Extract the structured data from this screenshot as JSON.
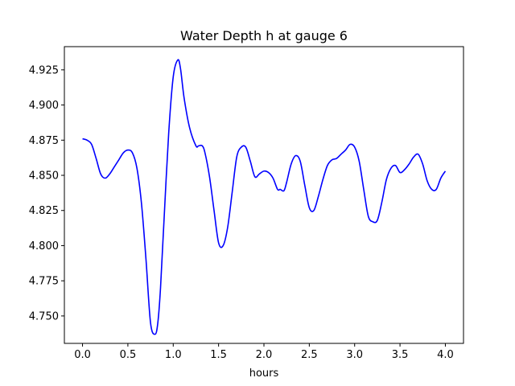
{
  "chart_data": {
    "type": "line",
    "title": "Water Depth h at gauge 6",
    "xlabel": "hours",
    "ylabel": "",
    "xlim": [
      -0.2,
      4.2
    ],
    "ylim": [
      4.7305,
      4.9415
    ],
    "xticks": [
      0.0,
      0.5,
      1.0,
      1.5,
      2.0,
      2.5,
      3.0,
      3.5,
      4.0
    ],
    "xtick_labels": [
      "0.0",
      "0.5",
      "1.0",
      "1.5",
      "2.0",
      "2.5",
      "3.0",
      "3.5",
      "4.0"
    ],
    "yticks": [
      4.75,
      4.775,
      4.8,
      4.825,
      4.85,
      4.875,
      4.9,
      4.925
    ],
    "ytick_labels": [
      "4.750",
      "4.775",
      "4.800",
      "4.825",
      "4.850",
      "4.875",
      "4.900",
      "4.925"
    ],
    "grid": false,
    "series": [
      {
        "color": "#0000ff",
        "x": [
          0.0,
          0.05,
          0.1,
          0.15,
          0.2,
          0.25,
          0.3,
          0.35,
          0.4,
          0.45,
          0.5,
          0.55,
          0.6,
          0.65,
          0.7,
          0.75,
          0.8,
          0.83,
          0.86,
          0.9,
          0.95,
          1.0,
          1.05,
          1.08,
          1.12,
          1.18,
          1.25,
          1.28,
          1.32,
          1.35,
          1.4,
          1.45,
          1.5,
          1.55,
          1.6,
          1.65,
          1.7,
          1.75,
          1.8,
          1.85,
          1.9,
          1.95,
          2.0,
          2.05,
          2.1,
          2.15,
          2.18,
          2.22,
          2.25,
          2.3,
          2.35,
          2.4,
          2.45,
          2.5,
          2.55,
          2.6,
          2.65,
          2.7,
          2.75,
          2.8,
          2.85,
          2.9,
          2.95,
          3.0,
          3.05,
          3.1,
          3.15,
          3.2,
          3.25,
          3.3,
          3.35,
          3.4,
          3.45,
          3.5,
          3.55,
          3.6,
          3.65,
          3.7,
          3.75,
          3.8,
          3.85,
          3.9,
          3.95,
          4.0
        ],
        "y": [
          4.876,
          4.875,
          4.872,
          4.862,
          4.851,
          4.848,
          4.851,
          4.856,
          4.861,
          4.866,
          4.868,
          4.866,
          4.855,
          4.83,
          4.79,
          4.745,
          4.737,
          4.745,
          4.77,
          4.82,
          4.88,
          4.92,
          4.932,
          4.926,
          4.905,
          4.884,
          4.871,
          4.871,
          4.871,
          4.866,
          4.849,
          4.825,
          4.802,
          4.8,
          4.813,
          4.838,
          4.863,
          4.87,
          4.87,
          4.86,
          4.849,
          4.851,
          4.853,
          4.852,
          4.848,
          4.84,
          4.84,
          4.839,
          4.845,
          4.858,
          4.864,
          4.86,
          4.843,
          4.827,
          4.825,
          4.835,
          4.847,
          4.857,
          4.861,
          4.862,
          4.865,
          4.868,
          4.872,
          4.87,
          4.86,
          4.84,
          4.821,
          4.817,
          4.818,
          4.831,
          4.847,
          4.855,
          4.857,
          4.852,
          4.854,
          4.858,
          4.863,
          4.865,
          4.858,
          4.846,
          4.84,
          4.84,
          4.848,
          4.853
        ]
      }
    ]
  }
}
